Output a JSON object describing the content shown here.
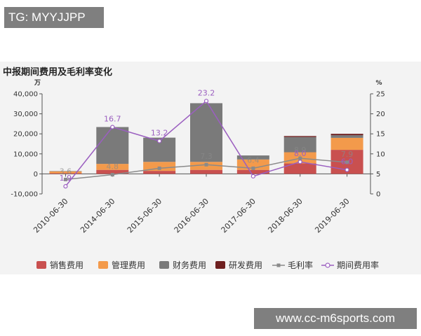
{
  "watermark_top": "TG: MYYJJPP",
  "watermark_bottom": "www.cc-m6sports.com",
  "chart_data": {
    "type": "bar",
    "title": "中报期间费用及毛利率变化",
    "left_unit": "万",
    "right_unit": "%",
    "categories": [
      "2010-06-30",
      "2014-06-30",
      "2015-06-30",
      "2016-06-30",
      "2017-06-30",
      "2018-06-30",
      "2019-06-30"
    ],
    "left_axis": {
      "min": -10000,
      "max": 40000,
      "ticks": [
        "-10,000",
        "0",
        "10,000",
        "20,000",
        "30,000",
        "40,000"
      ]
    },
    "right_axis": {
      "min": 0,
      "max": 25,
      "ticks": [
        "0",
        "5",
        "10",
        "15",
        "20",
        "25"
      ]
    },
    "grid": false,
    "legend_position": "bottom",
    "bar_series": [
      {
        "name": "销售费用",
        "color": "#c9504f",
        "values": [
          300,
          2000,
          1500,
          2000,
          2000,
          5200,
          12000
        ]
      },
      {
        "name": "管理费用",
        "color": "#f39a4b",
        "values": [
          1000,
          3000,
          4500,
          4000,
          5200,
          5600,
          6000
        ]
      },
      {
        "name": "财务费用",
        "color": "#7a7a7a",
        "values": [
          100,
          18400,
          12100,
          29300,
          2000,
          7600,
          1300
        ]
      },
      {
        "name": "研发费用",
        "color": "#6e1f1f",
        "values": [
          0,
          0,
          0,
          0,
          0,
          500,
          700
        ]
      }
    ],
    "line_series": [
      {
        "name": "毛利率",
        "color": "#8a8a8a",
        "marker": "square",
        "values": [
          3.6,
          4.8,
          6.4,
          7.3,
          6.4,
          8.9,
          7.9
        ],
        "labels": [
          "3.6",
          "4.8",
          "",
          "7.3",
          "6.4",
          "8.9",
          "7.9"
        ]
      },
      {
        "name": "期间费用率",
        "color": "#9b5fc0",
        "marker": "circle",
        "values": [
          1.9,
          16.7,
          13.2,
          23.2,
          4.4,
          8.0,
          6.0
        ],
        "labels": [
          "1.9",
          "16.7",
          "13.2",
          "23.2",
          "",
          "8.0",
          "6.0"
        ]
      }
    ]
  }
}
